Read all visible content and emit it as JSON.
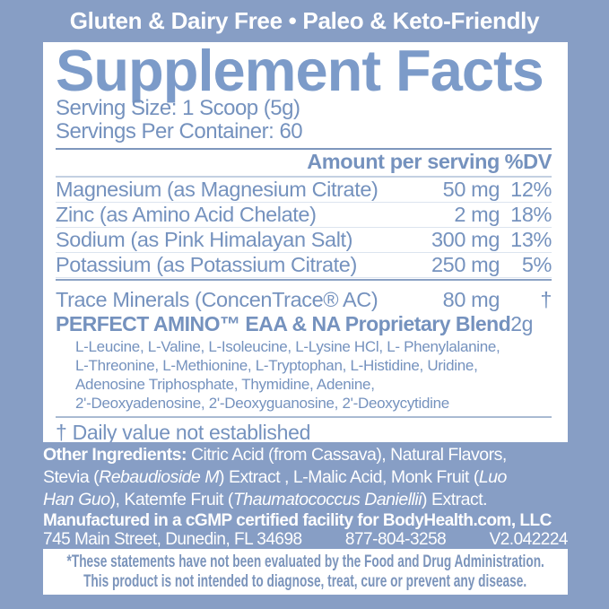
{
  "colors": {
    "background": "#879EC5",
    "panel": "#FFFFFF",
    "body_text": "#7592BE",
    "title_text": "#7C9BC9",
    "banner_text": "#FFFFFF",
    "rule_dark": "#7E97BD",
    "rule_light": "#C3D0E2"
  },
  "banner": {
    "label": "Gluten & Dairy Free • Paleo & Keto-Friendly"
  },
  "facts": {
    "title": "Supplement Facts",
    "serving_size": "Serving Size: 1 Scoop (5g)",
    "servings_per_container": "Servings Per Container: 60",
    "header": {
      "amount_label": "Amount per serving",
      "dv_label": "%DV"
    },
    "rows": [
      {
        "name": "Magnesium (as Magnesium Citrate)",
        "amount": "50 mg",
        "dv": "12%"
      },
      {
        "name": "Zinc (as Amino Acid Chelate)",
        "amount": "2 mg",
        "dv": "18%"
      },
      {
        "name": "Sodium (as Pink Himalayan Salt)",
        "amount": "300 mg",
        "dv": "13%"
      },
      {
        "name": "Potassium (as Potassium Citrate)",
        "amount": "250 mg",
        "dv": "5%"
      }
    ],
    "trace_row": {
      "name": "Trace Minerals (ConcenTrace® AC)",
      "amount": "80 mg",
      "dv": "†"
    },
    "blend_row": {
      "name": "PERFECT AMINO™ EAA & NA Proprietary Blend",
      "amount": "2g",
      "dv": "†"
    },
    "blend_ingredients_lines": [
      "L-Leucine, L-Valine, L-Isoleucine, L-Lysine HCl, L- Phenylalanine,",
      "L-Threonine, L-Methionine, L-Tryptophan, L-Histidine, Uridine,",
      "Adenosine Triphosphate, Thymidine, Adenine,",
      "2'-Deoxyadenosine, 2'-Deoxyguanosine, 2'-Deoxycytidine"
    ],
    "footnote": "† Daily value not established"
  },
  "lower": {
    "other_ingredients_lines": [
      [
        {
          "t": "Other Ingredients: ",
          "s": "b"
        },
        {
          "t": "Citric Acid (from Cassava), Natural Flavors,",
          "s": "n"
        }
      ],
      [
        {
          "t": "Stevia (",
          "s": "n"
        },
        {
          "t": "Rebaudioside M",
          "s": "i"
        },
        {
          "t": ") Extract , L-Malic Acid, Monk Fruit (",
          "s": "n"
        },
        {
          "t": "Luo",
          "s": "i"
        }
      ],
      [
        {
          "t": "Han Guo",
          "s": "i"
        },
        {
          "t": "), Katemfe Fruit (",
          "s": "n"
        },
        {
          "t": "Thaumatococcus Daniellii",
          "s": "i"
        },
        {
          "t": ") Extract.",
          "s": "n"
        }
      ]
    ],
    "manufactured": "Manufactured in a cGMP certified facility for  BodyHealth.com, LLC",
    "address": "745 Main Street, Dunedin, FL 34698",
    "phone": "877-804-3258",
    "version": "V2.042224"
  },
  "disclaimer": {
    "line1": "*These statements have not been evaluated by the Food and Drug Administration.",
    "line2": "This product is not intended to diagnose, treat, cure or prevent any disease."
  }
}
